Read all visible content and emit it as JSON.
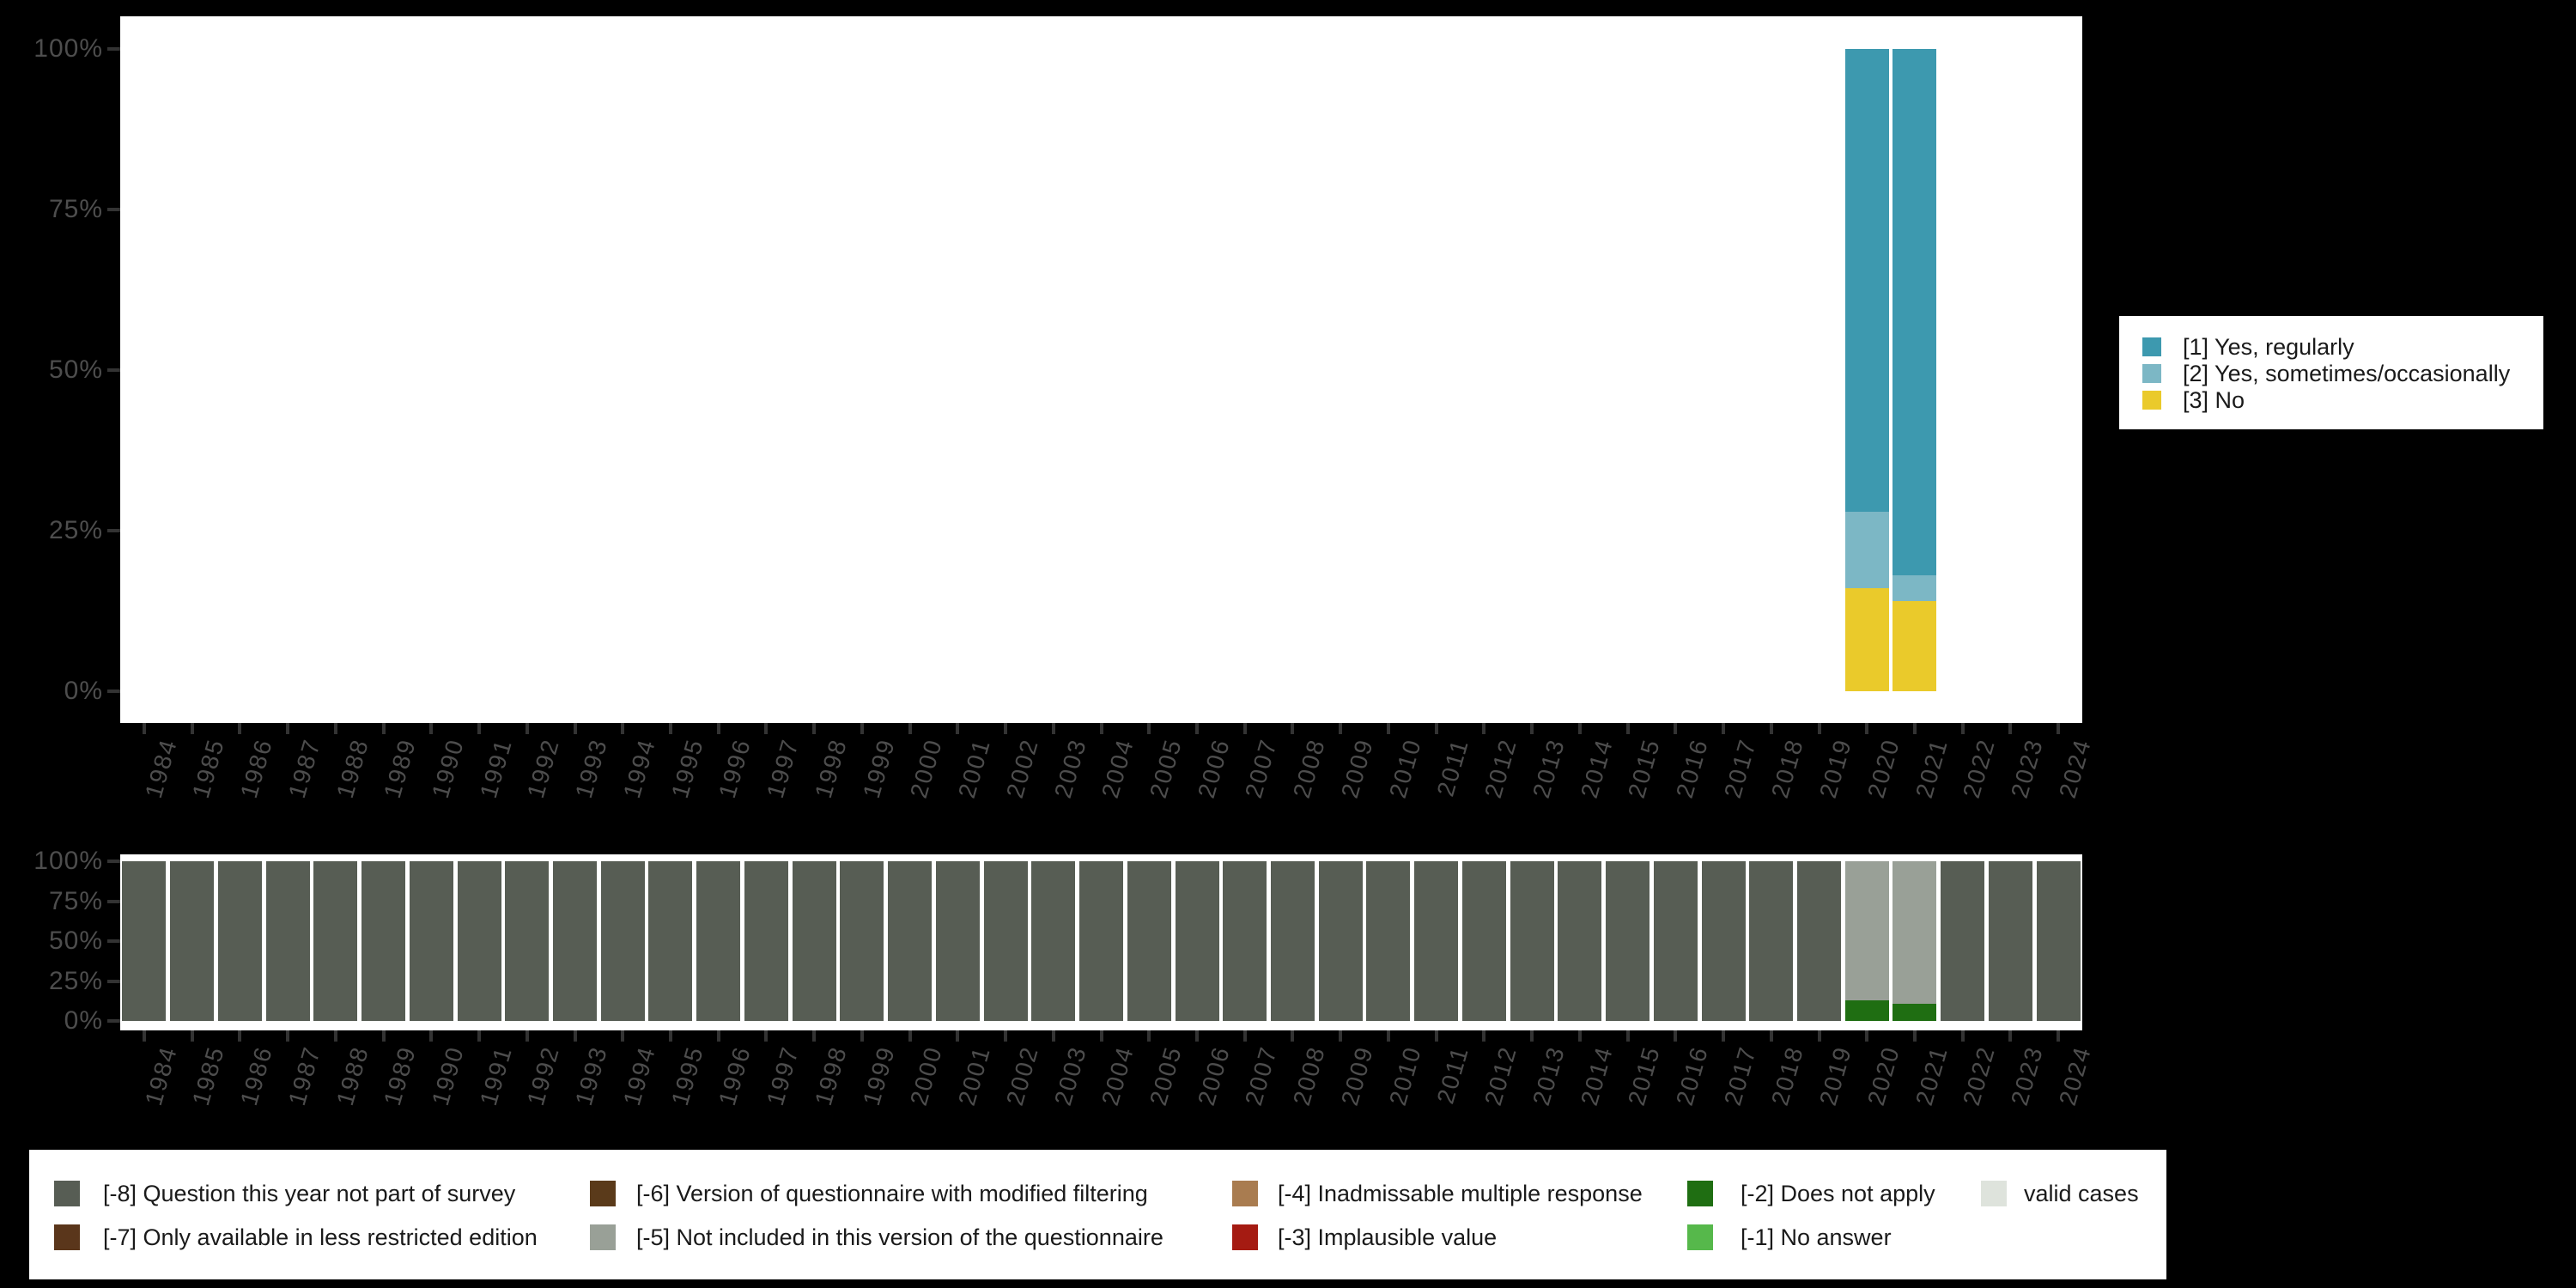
{
  "colors": {
    "page_background": "#000000",
    "panel_background": "#FFFFFF",
    "axis_text": "#4D4D4D",
    "tick_mark": "#333333",
    "legend_text": "#1A1A1A"
  },
  "chart_data": [
    {
      "type": "bar",
      "subtype": "stacked_percent_column",
      "title": "",
      "xlabel": "",
      "ylabel": "",
      "grid": false,
      "ylim": [
        0,
        100
      ],
      "y_tick_labels": [
        "100%",
        "75%",
        "50%",
        "25%",
        "0%"
      ],
      "categories": [
        "1984",
        "1985",
        "1986",
        "1987",
        "1988",
        "1989",
        "1990",
        "1991",
        "1992",
        "1993",
        "1994",
        "1995",
        "1996",
        "1997",
        "1998",
        "1999",
        "2000",
        "2001",
        "2002",
        "2003",
        "2004",
        "2005",
        "2006",
        "2007",
        "2008",
        "2009",
        "2010",
        "2011",
        "2012",
        "2013",
        "2014",
        "2015",
        "2016",
        "2017",
        "2018",
        "2019",
        "2020",
        "2021",
        "2022",
        "2023",
        "2024"
      ],
      "series": [
        {
          "name": "[1] Yes, regularly",
          "color": "#3D99AF",
          "default": 0,
          "by_year": {
            "2020": 72,
            "2021": 82
          }
        },
        {
          "name": "[2] Yes, sometimes/occasionally",
          "color": "#7CB7C5",
          "default": 0,
          "by_year": {
            "2020": 12,
            "2021": 4
          }
        },
        {
          "name": "[3] No",
          "color": "#EACA2B",
          "default": 0,
          "by_year": {
            "2020": 16,
            "2021": 14
          }
        }
      ],
      "legend_position": "right"
    },
    {
      "type": "bar",
      "subtype": "stacked_percent_column",
      "title": "",
      "xlabel": "",
      "ylabel": "",
      "grid": false,
      "ylim": [
        0,
        100
      ],
      "y_tick_labels": [
        "100%",
        "75%",
        "50%",
        "25%",
        "0%"
      ],
      "categories": [
        "1984",
        "1985",
        "1986",
        "1987",
        "1988",
        "1989",
        "1990",
        "1991",
        "1992",
        "1993",
        "1994",
        "1995",
        "1996",
        "1997",
        "1998",
        "1999",
        "2000",
        "2001",
        "2002",
        "2003",
        "2004",
        "2005",
        "2006",
        "2007",
        "2008",
        "2009",
        "2010",
        "2011",
        "2012",
        "2013",
        "2014",
        "2015",
        "2016",
        "2017",
        "2018",
        "2019",
        "2020",
        "2021",
        "2022",
        "2023",
        "2024"
      ],
      "series": [
        {
          "name": "[-8] Question this year not part of survey",
          "color": "#575D54",
          "default": 100,
          "by_year": {
            "2020": 0,
            "2021": 0
          }
        },
        {
          "name": "[-5] Not included in this version of the questionnaire",
          "color": "#99A097",
          "default": 0,
          "by_year": {
            "2020": 87,
            "2021": 89
          }
        },
        {
          "name": "[-2] Does not apply",
          "color": "#1F6E12",
          "default": 0,
          "by_year": {
            "2020": 13,
            "2021": 11
          }
        }
      ],
      "legend_position": "bottom"
    }
  ],
  "legend_values": {
    "items": [
      {
        "label": "[1] Yes, regularly",
        "color": "#3D99AF"
      },
      {
        "label": "[2] Yes, sometimes/occasionally",
        "color": "#7CB7C5"
      },
      {
        "label": "[3] No",
        "color": "#EACA2B"
      }
    ]
  },
  "legend_missings": {
    "columns": [
      {
        "items": [
          {
            "label": "[-8] Question this year not part of survey",
            "color": "#575D54"
          },
          {
            "label": "[-7] Only available in less restricted edition",
            "color": "#5A361B"
          }
        ]
      },
      {
        "items": [
          {
            "label": "[-6] Version of questionnaire with modified filtering",
            "color": "#5A3A1A"
          },
          {
            "label": "[-5] Not included in this version of the questionnaire",
            "color": "#99A097"
          }
        ]
      },
      {
        "items": [
          {
            "label": "[-4] Inadmissable multiple response",
            "color": "#A97C50"
          },
          {
            "label": "[-3] Implausible value",
            "color": "#A51B12"
          }
        ]
      },
      {
        "items": [
          {
            "label": "[-2] Does not apply",
            "color": "#1F6E12"
          },
          {
            "label": "[-1] No answer",
            "color": "#56B84B"
          }
        ]
      },
      {
        "items": [
          {
            "label": "valid cases",
            "color": "#DEE3DC"
          }
        ]
      }
    ]
  }
}
